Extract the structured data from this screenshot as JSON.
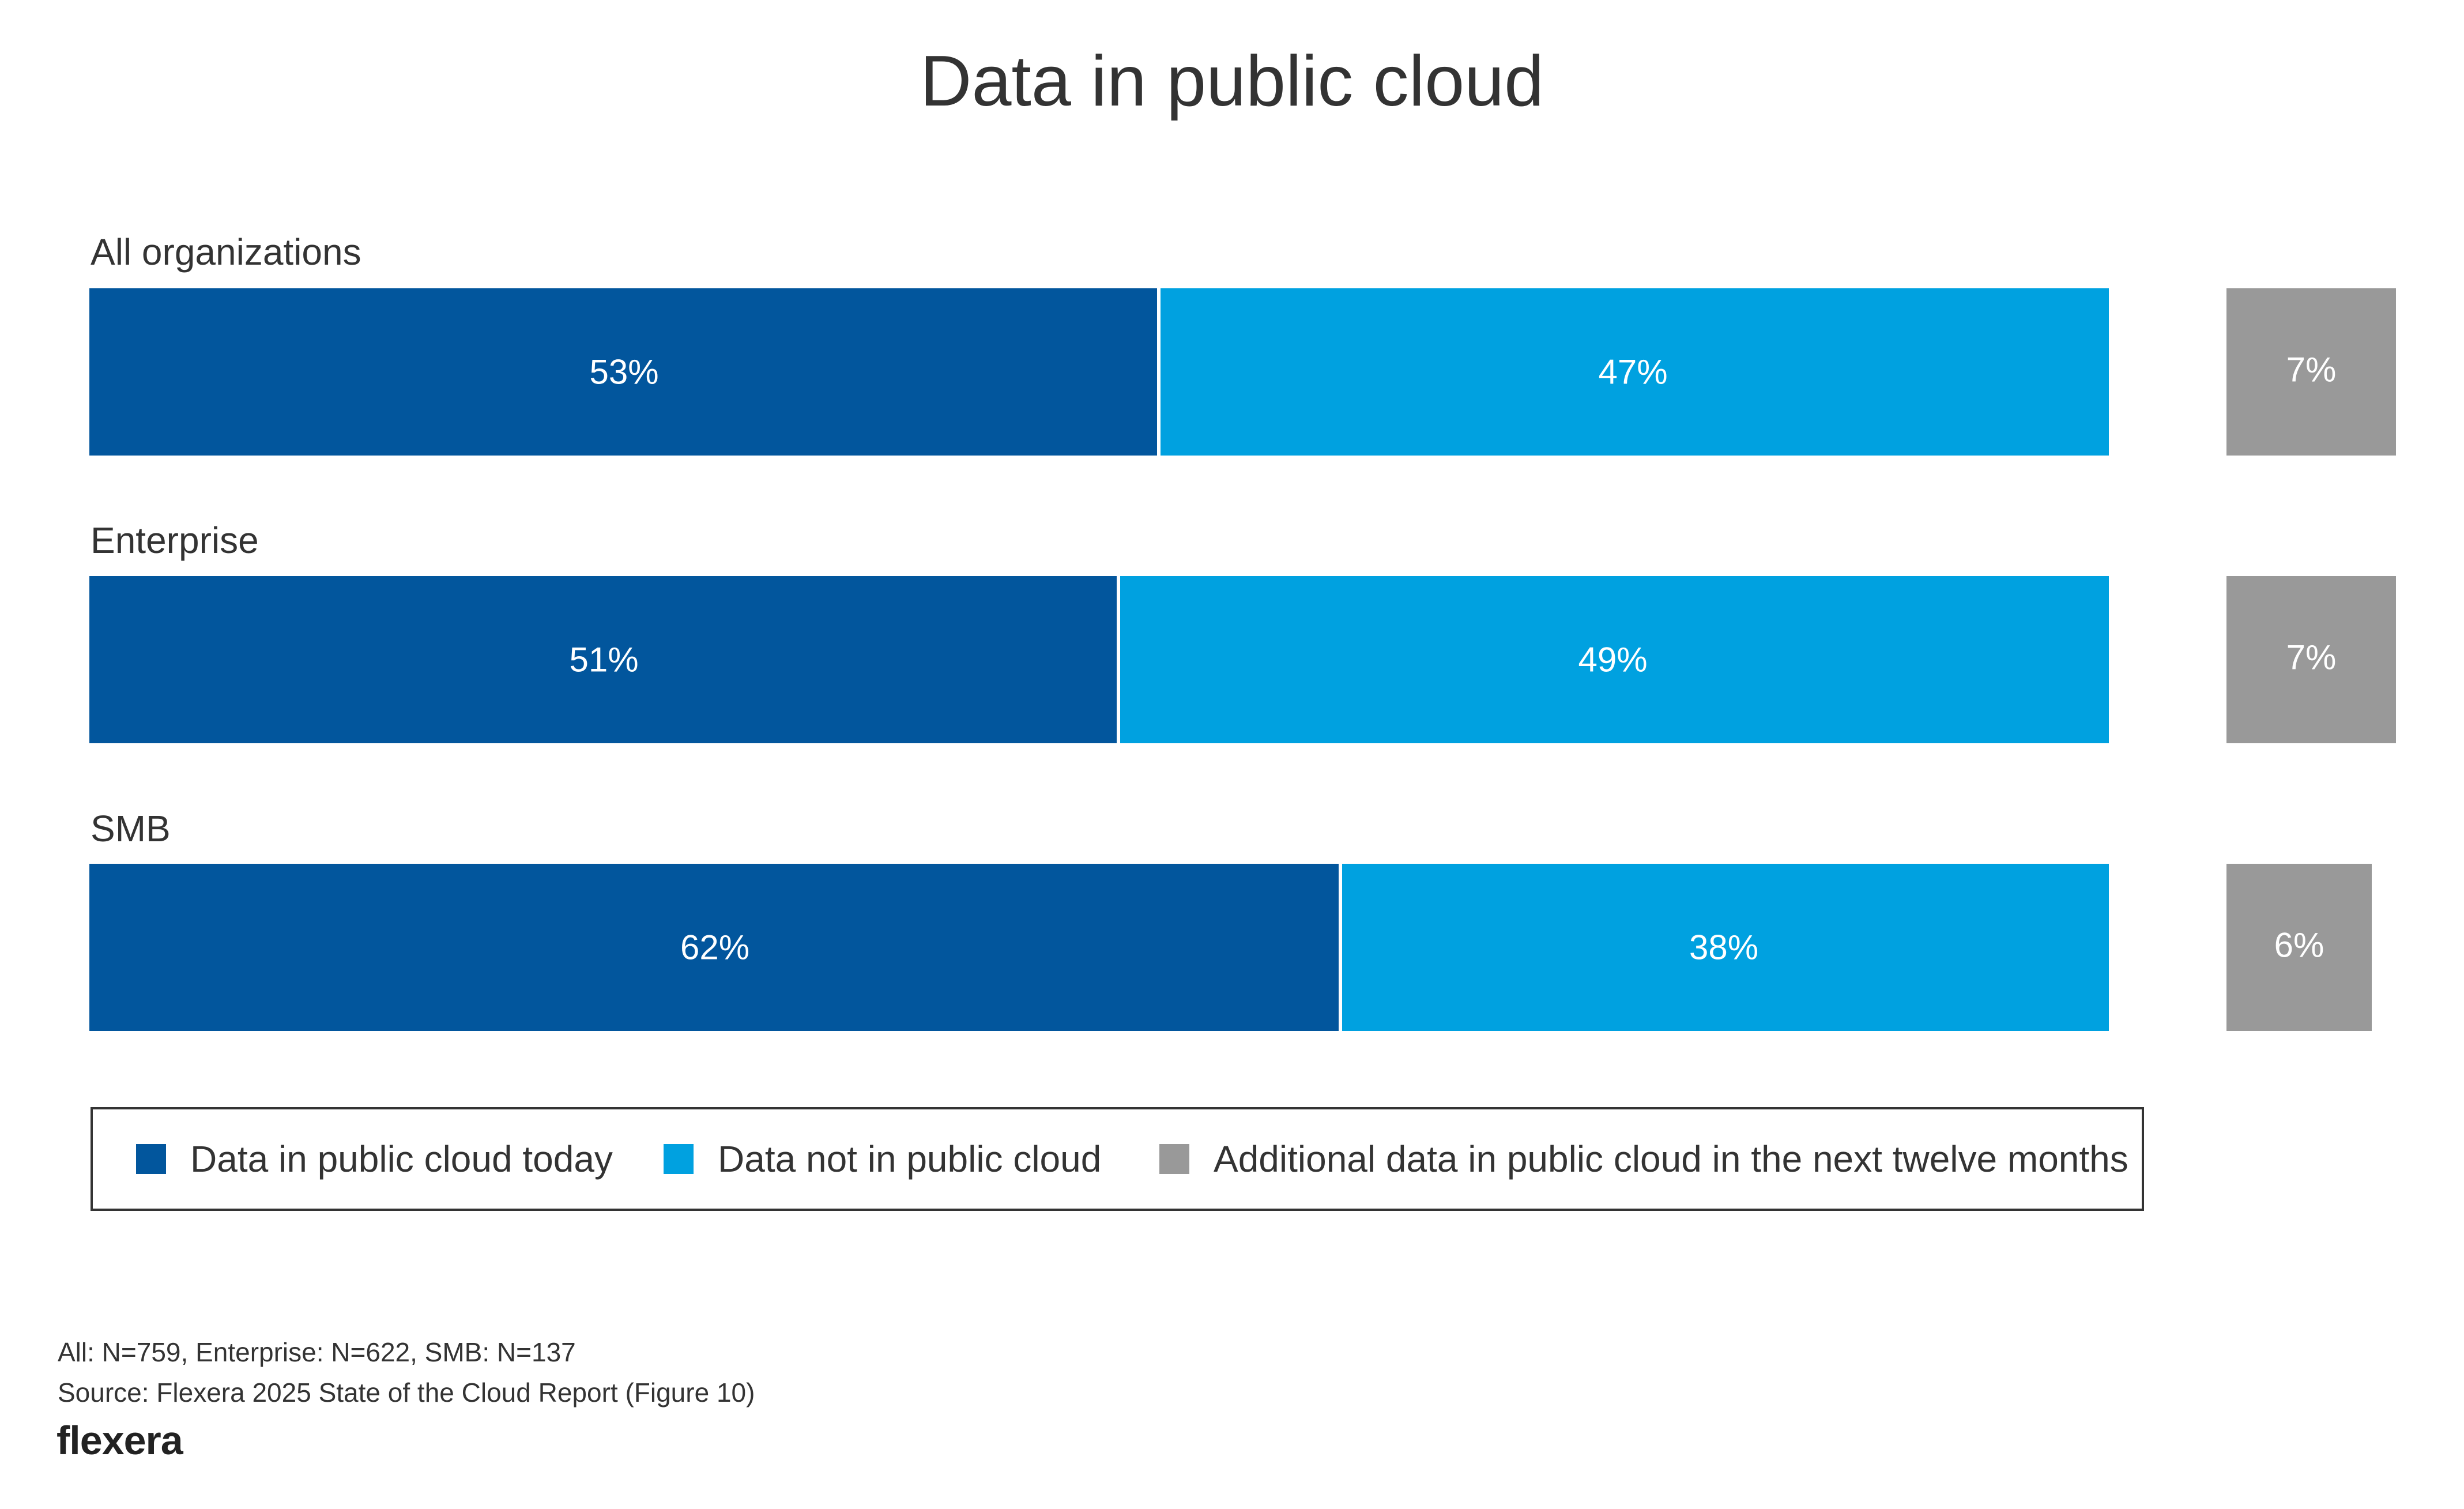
{
  "title": "Data in public cloud",
  "colors": {
    "in_cloud": "#02569d",
    "not_in_cloud": "#00a1e0",
    "additional": "#999999",
    "label": "#ffffff"
  },
  "legend": {
    "in_cloud": "Data in public cloud today",
    "not_in_cloud": "Data not in public cloud",
    "additional": "Additional data in public cloud in the next twelve months"
  },
  "chart_data": {
    "type": "bar",
    "orientation": "horizontal",
    "stacked": true,
    "categories": [
      "All organizations",
      "Enterprise",
      "SMB"
    ],
    "series": [
      {
        "name": "Data in public cloud today",
        "values": [
          53,
          51,
          62
        ],
        "labels": [
          "53%",
          "51%",
          "62%"
        ]
      },
      {
        "name": "Data not in public cloud",
        "values": [
          47,
          49,
          38
        ],
        "labels": [
          "47%",
          "49%",
          "38%"
        ]
      }
    ],
    "additional": {
      "name": "Additional data in public cloud in the next twelve months",
      "values": [
        7,
        7,
        6
      ],
      "labels": [
        "7%",
        "7%",
        "6%"
      ]
    },
    "xlim": [
      0,
      100
    ],
    "grid": false,
    "legend_position": "bottom"
  },
  "footnotes": {
    "sample": "All: N=759, Enterprise: N=622, SMB: N=137",
    "source": "Source: Flexera 2025 State of the Cloud Report (Figure 10)"
  },
  "logo": "flexera"
}
